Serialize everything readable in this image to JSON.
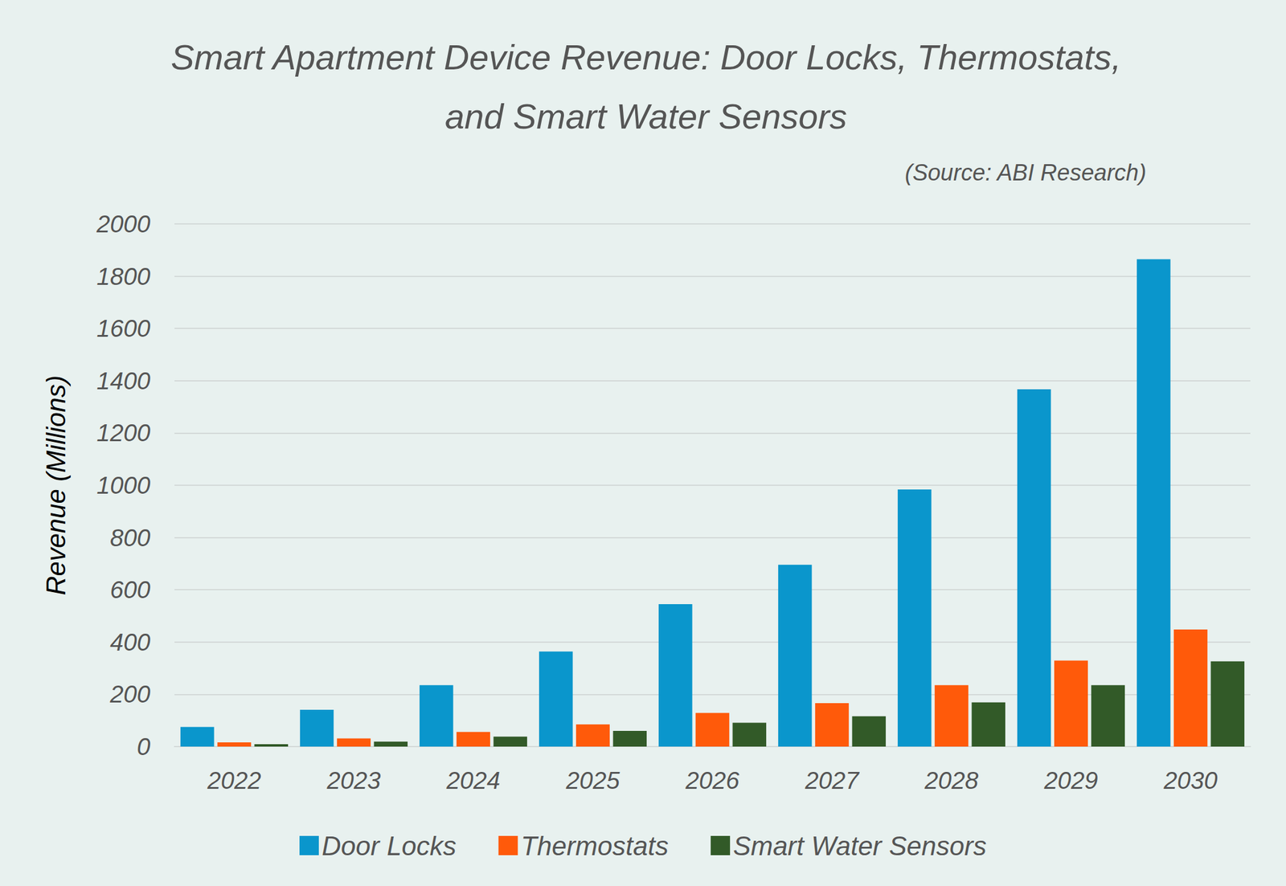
{
  "chart_data": {
    "type": "bar",
    "title": "Smart Apartment Device Revenue: Door Locks, Thermostats,\nand Smart Water Sensors",
    "subtitle": "(Source: ABI Research)",
    "ylabel": "Revenue (Millions)",
    "categories": [
      "2022",
      "2023",
      "2024",
      "2025",
      "2026",
      "2027",
      "2028",
      "2029",
      "2030"
    ],
    "series": [
      {
        "name": "Door Locks",
        "color": "#0a96cc",
        "values": [
          75,
          141,
          235,
          364,
          545,
          696,
          984,
          1367,
          1865
        ]
      },
      {
        "name": "Thermostats",
        "color": "#ff5a0a",
        "values": [
          16,
          31,
          56,
          85,
          129,
          166,
          235,
          329,
          448
        ]
      },
      {
        "name": "Smart Water Sensors",
        "color": "#325a28",
        "values": [
          9,
          19,
          38,
          60,
          91,
          116,
          169,
          235,
          326
        ]
      }
    ],
    "ylim": [
      0,
      2000
    ],
    "yticks": [
      0,
      200,
      400,
      600,
      800,
      1000,
      1200,
      1400,
      1600,
      1800,
      2000
    ],
    "grid": true,
    "legend": "bottom"
  }
}
